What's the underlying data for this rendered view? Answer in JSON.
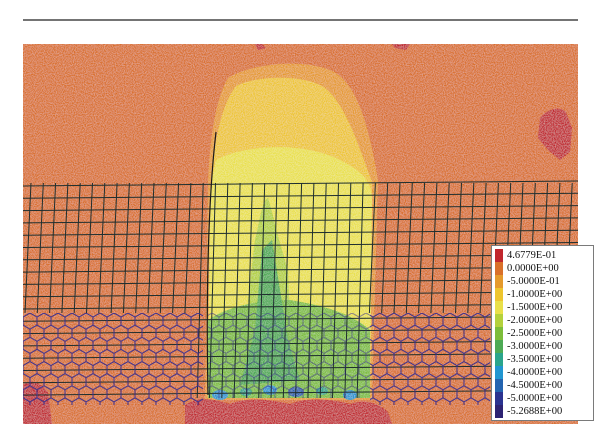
{
  "legend": {
    "entries": [
      {
        "label": "4.6779E-01",
        "color": "#c1272d"
      },
      {
        "label": "0.0000E+00",
        "color": "#d9702a"
      },
      {
        "label": "-5.0000E-01",
        "color": "#e59a2c"
      },
      {
        "label": "-1.0000E+00",
        "color": "#edc52e"
      },
      {
        "label": "-1.5000E+00",
        "color": "#e9e04a"
      },
      {
        "label": "-2.0000E+00",
        "color": "#b4d13c"
      },
      {
        "label": "-2.5000E+00",
        "color": "#7dbd3a"
      },
      {
        "label": "-3.0000E+00",
        "color": "#4daa55"
      },
      {
        "label": "-3.5000E+00",
        "color": "#2aa58c"
      },
      {
        "label": "-4.0000E+00",
        "color": "#2196d0"
      },
      {
        "label": "-4.5000E+00",
        "color": "#2464b0"
      },
      {
        "label": "-5.0000E+00",
        "color": "#2b3390"
      },
      {
        "label": "-5.2688E+00",
        "color": "#2d2373"
      }
    ]
  },
  "colors": {
    "background_field": "#d9702a",
    "positive_zone": "#c1272d",
    "square_mesh": "#1f2f2f",
    "hexagonal_mesh": "#3a2f8f"
  }
}
